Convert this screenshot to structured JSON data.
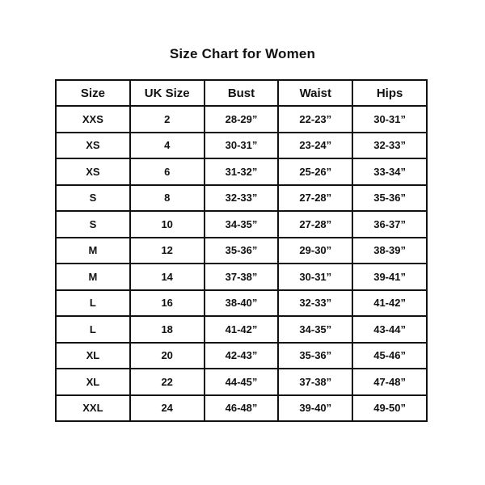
{
  "title": "Size Chart for Women",
  "colors": {
    "background": "#ffffff",
    "text": "#111111",
    "border": "#111111"
  },
  "chart_data": {
    "type": "table",
    "title": "Size Chart for Women",
    "headers": [
      "Size",
      "UK Size",
      "Bust",
      "Waist",
      "Hips"
    ],
    "rows": [
      [
        "XXS",
        "2",
        "28-29”",
        "22-23”",
        "30-31”"
      ],
      [
        "XS",
        "4",
        "30-31”",
        "23-24”",
        "32-33”"
      ],
      [
        "XS",
        "6",
        "31-32”",
        "25-26”",
        "33-34”"
      ],
      [
        "S",
        "8",
        "32-33”",
        "27-28”",
        "35-36”"
      ],
      [
        "S",
        "10",
        "34-35”",
        "27-28”",
        "36-37”"
      ],
      [
        "M",
        "12",
        "35-36”",
        "29-30”",
        "38-39”"
      ],
      [
        "M",
        "14",
        "37-38”",
        "30-31”",
        "39-41”"
      ],
      [
        "L",
        "16",
        "38-40”",
        "32-33”",
        "41-42”"
      ],
      [
        "L",
        "18",
        "41-42”",
        "34-35”",
        "43-44”"
      ],
      [
        "XL",
        "20",
        "42-43”",
        "35-36”",
        "45-46”"
      ],
      [
        "XL",
        "22",
        "44-45”",
        "37-38”",
        "47-48”"
      ],
      [
        "XXL",
        "24",
        "46-48”",
        "39-40”",
        "49-50”"
      ]
    ]
  }
}
